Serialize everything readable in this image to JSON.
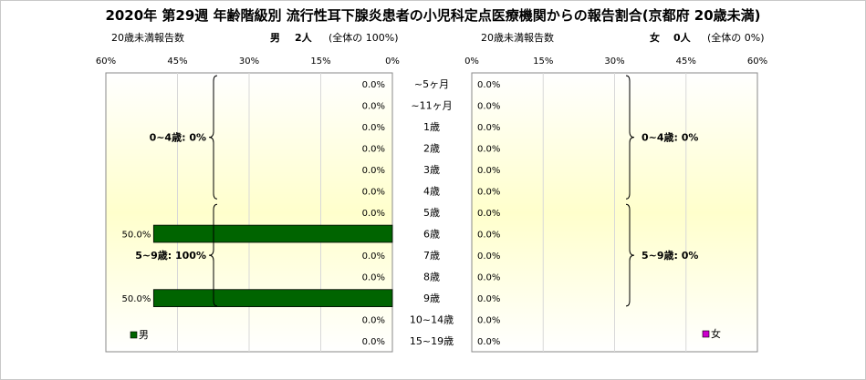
{
  "title": "2020年 第29週 年齢階級別 流行性耳下腺炎患者の小児科定点医療機関からの報告割合(京都府 20歳未満)",
  "left_panel": {
    "caption": "20歳未満報告数",
    "sex": "男",
    "count": "2人",
    "share": "(全体の 100%)",
    "ticks": [
      "60%",
      "45%",
      "30%",
      "15%",
      "0%"
    ],
    "legend": "男",
    "color": "#006400"
  },
  "right_panel": {
    "caption": "20歳未満報告数",
    "sex": "女",
    "count": "0人",
    "share": "(全体の 0%)",
    "ticks": [
      "0%",
      "15%",
      "30%",
      "45%",
      "60%"
    ],
    "legend": "女",
    "color": "#cc00cc"
  },
  "chart_data": {
    "type": "bar",
    "title": "2020年 第29週 年齢階級別 流行性耳下腺炎患者の小児科定点医療機関からの報告割合(京都府 20歳未満)",
    "categories": [
      "~5ヶ月",
      "~11ヶ月",
      "1歳",
      "2歳",
      "3歳",
      "4歳",
      "5歳",
      "6歳",
      "7歳",
      "8歳",
      "9歳",
      "10~14歳",
      "15~19歳"
    ],
    "xlim": [
      0,
      60
    ],
    "series": [
      {
        "name": "男",
        "values": [
          0,
          0,
          0,
          0,
          0,
          0,
          0,
          50,
          0,
          0,
          50,
          0,
          0
        ],
        "labels": [
          "0.0%",
          "0.0%",
          "0.0%",
          "0.0%",
          "0.0%",
          "0.0%",
          "0.0%",
          "50.0%",
          "0.0%",
          "0.0%",
          "50.0%",
          "0.0%",
          "0.0%"
        ],
        "groups": [
          {
            "label": "0~4歳: 0%",
            "from": 0,
            "to": 5
          },
          {
            "label": "5~9歳: 100%",
            "from": 6,
            "to": 10
          }
        ]
      },
      {
        "name": "女",
        "values": [
          0,
          0,
          0,
          0,
          0,
          0,
          0,
          0,
          0,
          0,
          0,
          0,
          0
        ],
        "labels": [
          "0.0%",
          "0.0%",
          "0.0%",
          "0.0%",
          "0.0%",
          "0.0%",
          "0.0%",
          "0.0%",
          "0.0%",
          "0.0%",
          "0.0%",
          "0.0%",
          "0.0%"
        ],
        "groups": [
          {
            "label": "0~4歳: 0%",
            "from": 0,
            "to": 5
          },
          {
            "label": "5~9歳: 0%",
            "from": 6,
            "to": 10
          }
        ]
      }
    ]
  }
}
